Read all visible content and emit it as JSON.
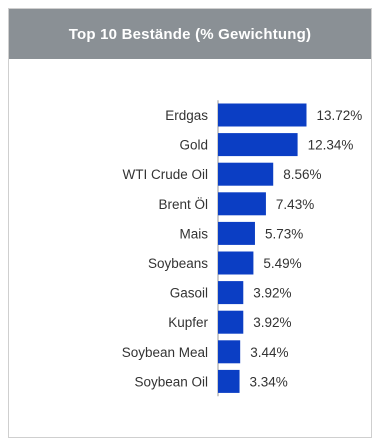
{
  "header": {
    "title": "Top 10 Bestände (% Gewichtung)"
  },
  "colors": {
    "header_bg": "#8a9095",
    "bar": "#0b3ec4",
    "axis": "#999999",
    "text": "#333333"
  },
  "chart_data": {
    "type": "bar",
    "orientation": "horizontal",
    "title": "Top 10 Bestände (% Gewichtung)",
    "categories": [
      "Erdgas",
      "Gold",
      "WTI Crude Oil",
      "Brent Öl",
      "Mais",
      "Soybeans",
      "Gasoil",
      "Kupfer",
      "Soybean Meal",
      "Soybean Oil"
    ],
    "values": [
      13.72,
      12.34,
      8.56,
      7.43,
      5.73,
      5.49,
      3.92,
      3.92,
      3.44,
      3.34
    ],
    "value_labels": [
      "13.72%",
      "12.34%",
      "8.56%",
      "7.43%",
      "5.73%",
      "5.49%",
      "3.92%",
      "3.92%",
      "3.44%",
      "3.34%"
    ],
    "unit": "%",
    "grid": false,
    "legend": "none"
  }
}
